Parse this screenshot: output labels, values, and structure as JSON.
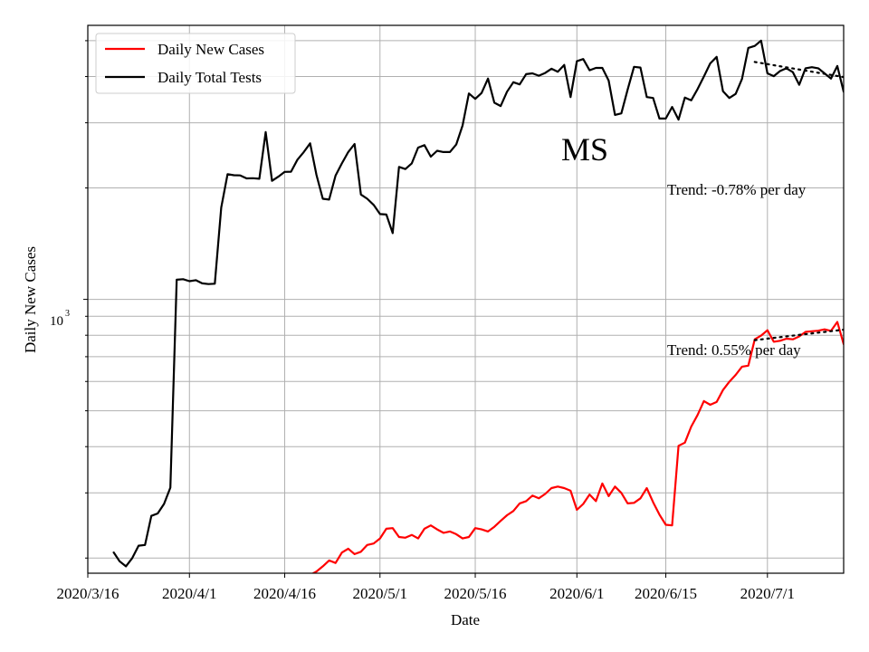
{
  "chart_data": {
    "type": "line",
    "title": "",
    "xlabel": "Date",
    "ylabel": "Daily New Cases",
    "yscale": "log",
    "grid": true,
    "legend_placement": "top-left",
    "x_tick_labels": [
      "2020/3/16",
      "2020/4/1",
      "2020/4/16",
      "2020/5/1",
      "2020/5/16",
      "2020/6/1",
      "2020/6/15",
      "2020/7/1"
    ],
    "x_tick_dates": [
      "2020-03-16",
      "2020-04-01",
      "2020-04-16",
      "2020-05-01",
      "2020-05-16",
      "2020-06-01",
      "2020-06-15",
      "2020-07-01"
    ],
    "x_range": [
      "2020-03-16",
      "2020-07-13"
    ],
    "y_range": [
      182,
      5500
    ],
    "y_major_tick": {
      "value": 1000,
      "base": "10",
      "exponent": "3"
    },
    "y_minor_ticks": [
      200,
      300,
      400,
      500,
      600,
      700,
      800,
      900,
      2000,
      3000,
      4000,
      5000
    ],
    "annotations": {
      "state": "MS",
      "trend_tests": "Trend: -0.78% per day",
      "trend_cases": "Trend: 0.55% per day"
    },
    "colors": {
      "cases": "#ff0000",
      "tests": "#000000",
      "grid": "#b0b0b0"
    },
    "series": [
      {
        "name": "Daily New Cases",
        "color": "#ff0000",
        "start_date": "2020-04-20",
        "values": [
          180,
          184,
          190,
          197,
          194,
          207,
          212,
          205,
          208,
          217,
          219,
          226,
          240,
          241,
          228,
          227,
          231,
          226,
          240,
          245,
          239,
          234,
          236,
          232,
          226,
          228,
          241,
          239,
          236,
          243,
          252,
          261,
          268,
          281,
          285,
          295,
          290,
          298,
          309,
          312,
          309,
          304,
          270,
          280,
          297,
          285,
          318,
          294,
          312,
          300,
          281,
          282,
          290,
          309,
          283,
          262,
          246,
          245,
          402,
          410,
          453,
          487,
          531,
          519,
          528,
          569,
          599,
          625,
          658,
          662,
          780,
          798,
          825,
          768,
          773,
          783,
          780,
          794,
          817,
          820,
          823,
          830,
          822,
          869,
          757,
          797
        ],
        "trend": {
          "start_date": "2020-06-29",
          "start": 776,
          "end": 832
        }
      },
      {
        "name": "Daily Total Tests",
        "color": "#000000",
        "start_date": "2020-03-20",
        "values": [
          208,
          196,
          190,
          200,
          216,
          217,
          260,
          264,
          280,
          310,
          1130,
          1134,
          1120,
          1127,
          1105,
          1100,
          1102,
          1770,
          2180,
          2165,
          2162,
          2123,
          2125,
          2118,
          2830,
          2090,
          2145,
          2210,
          2213,
          2385,
          2500,
          2640,
          2170,
          1870,
          1860,
          2160,
          2330,
          2500,
          2630,
          1920,
          1870,
          1800,
          1700,
          1695,
          1510,
          2280,
          2250,
          2330,
          2570,
          2610,
          2430,
          2520,
          2500,
          2500,
          2620,
          2950,
          3600,
          3480,
          3610,
          3950,
          3400,
          3330,
          3640,
          3860,
          3810,
          4060,
          4080,
          4020,
          4090,
          4200,
          4120,
          4300,
          3520,
          4400,
          4460,
          4160,
          4220,
          4220,
          3900,
          3150,
          3180,
          3690,
          4250,
          4230,
          3520,
          3500,
          3080,
          3080,
          3310,
          3060,
          3510,
          3450,
          3700,
          4000,
          4340,
          4520,
          3650,
          3500,
          3590,
          3940,
          4780,
          4840,
          5000,
          4080,
          4010,
          4140,
          4210,
          4110,
          3800,
          4210,
          4240,
          4210,
          4080,
          3950,
          4270,
          3640,
          4070
        ],
        "trend": {
          "start_date": "2020-06-29",
          "start": 4380,
          "end": 3960
        }
      }
    ]
  }
}
